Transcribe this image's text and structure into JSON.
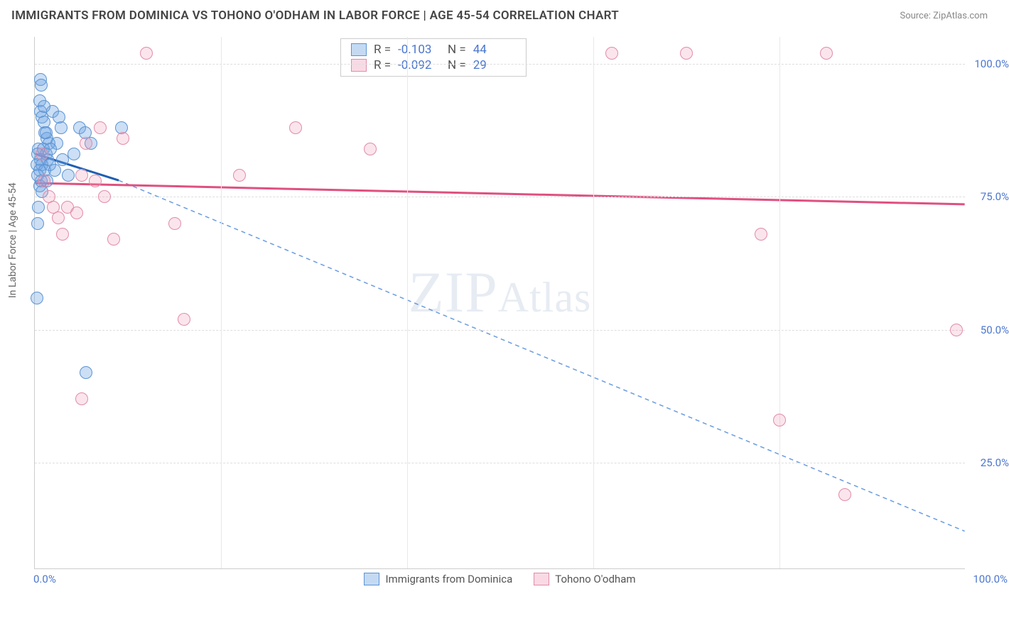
{
  "title": "IMMIGRANTS FROM DOMINICA VS TOHONO O'ODHAM IN LABOR FORCE | AGE 45-54 CORRELATION CHART",
  "source": "Source: ZipAtlas.com",
  "watermark_main": "ZIP",
  "watermark_sub": "Atlas",
  "chart": {
    "type": "scatter",
    "ylabel": "In Labor Force | Age 45-54",
    "ylim": [
      5,
      105
    ],
    "xlim": [
      0,
      100
    ],
    "y_ticks": [
      25,
      50,
      75,
      100
    ],
    "y_tick_labels": [
      "25.0%",
      "50.0%",
      "75.0%",
      "100.0%"
    ],
    "x_tick_left": "0.0%",
    "x_tick_right": "100.0%",
    "x_grid": [
      20,
      40,
      60,
      80
    ],
    "background_color": "#ffffff",
    "grid_color": "#dddddd",
    "point_radius": 9,
    "series": [
      {
        "name": "Immigrants from Dominica",
        "color_key": "blue",
        "fill": "rgba(108,163,226,0.35)",
        "stroke": "#5b94d4",
        "R": "-0.103",
        "N": "44",
        "trend_line": {
          "x1": 0,
          "y1": 83,
          "x2": 9,
          "y2": 78,
          "stroke": "#1e5fb3",
          "width": 3,
          "dash": "none"
        },
        "trend_dash": {
          "x1": 9,
          "y1": 78,
          "x2": 100,
          "y2": 12,
          "stroke": "#6a9be0",
          "width": 1.5,
          "dash": "6,5"
        },
        "points": [
          {
            "x": 0.3,
            "y": 70
          },
          {
            "x": 0.4,
            "y": 73
          },
          {
            "x": 0.6,
            "y": 97
          },
          {
            "x": 0.7,
            "y": 96
          },
          {
            "x": 0.5,
            "y": 93
          },
          {
            "x": 0.6,
            "y": 91
          },
          {
            "x": 0.8,
            "y": 90
          },
          {
            "x": 1.0,
            "y": 89
          },
          {
            "x": 1.1,
            "y": 87
          },
          {
            "x": 1.3,
            "y": 86
          },
          {
            "x": 1.5,
            "y": 85
          },
          {
            "x": 0.4,
            "y": 84
          },
          {
            "x": 0.9,
            "y": 84
          },
          {
            "x": 1.2,
            "y": 83
          },
          {
            "x": 0.3,
            "y": 83
          },
          {
            "x": 0.6,
            "y": 82
          },
          {
            "x": 1.4,
            "y": 82
          },
          {
            "x": 0.2,
            "y": 81
          },
          {
            "x": 0.8,
            "y": 81
          },
          {
            "x": 1.6,
            "y": 81
          },
          {
            "x": 0.5,
            "y": 80
          },
          {
            "x": 1.1,
            "y": 80
          },
          {
            "x": 0.3,
            "y": 79
          },
          {
            "x": 0.7,
            "y": 78
          },
          {
            "x": 1.3,
            "y": 78
          },
          {
            "x": 1.9,
            "y": 91
          },
          {
            "x": 2.4,
            "y": 85
          },
          {
            "x": 3.0,
            "y": 82
          },
          {
            "x": 3.6,
            "y": 79
          },
          {
            "x": 4.2,
            "y": 83
          },
          {
            "x": 4.8,
            "y": 88
          },
          {
            "x": 5.4,
            "y": 87
          },
          {
            "x": 6.0,
            "y": 85
          },
          {
            "x": 9.3,
            "y": 88
          },
          {
            "x": 2.8,
            "y": 88
          },
          {
            "x": 0.2,
            "y": 56
          },
          {
            "x": 5.5,
            "y": 42
          },
          {
            "x": 0.5,
            "y": 77
          },
          {
            "x": 0.8,
            "y": 76
          },
          {
            "x": 1.2,
            "y": 87
          },
          {
            "x": 1.7,
            "y": 84
          },
          {
            "x": 2.1,
            "y": 80
          },
          {
            "x": 2.6,
            "y": 90
          },
          {
            "x": 1.0,
            "y": 92
          }
        ]
      },
      {
        "name": "Tohono O'odham",
        "color_key": "pink",
        "fill": "rgba(238,150,178,0.25)",
        "stroke": "#e28ba7",
        "R": "-0.092",
        "N": "29",
        "trend_line": {
          "x1": 0,
          "y1": 77.5,
          "x2": 100,
          "y2": 73.5,
          "stroke": "#e0507f",
          "width": 3,
          "dash": "none"
        },
        "points": [
          {
            "x": 1.0,
            "y": 78
          },
          {
            "x": 1.5,
            "y": 75
          },
          {
            "x": 2.0,
            "y": 73
          },
          {
            "x": 2.5,
            "y": 71
          },
          {
            "x": 3.5,
            "y": 73
          },
          {
            "x": 4.5,
            "y": 72
          },
          {
            "x": 5.5,
            "y": 85
          },
          {
            "x": 6.5,
            "y": 78
          },
          {
            "x": 7.5,
            "y": 75
          },
          {
            "x": 8.5,
            "y": 67
          },
          {
            "x": 9.5,
            "y": 86
          },
          {
            "x": 12,
            "y": 102
          },
          {
            "x": 15,
            "y": 70
          },
          {
            "x": 16,
            "y": 52
          },
          {
            "x": 22,
            "y": 79
          },
          {
            "x": 28,
            "y": 88
          },
          {
            "x": 36,
            "y": 84
          },
          {
            "x": 62,
            "y": 102
          },
          {
            "x": 70,
            "y": 102
          },
          {
            "x": 85,
            "y": 102
          },
          {
            "x": 78,
            "y": 68
          },
          {
            "x": 80,
            "y": 33
          },
          {
            "x": 87,
            "y": 19
          },
          {
            "x": 99,
            "y": 50
          },
          {
            "x": 0.8,
            "y": 83
          },
          {
            "x": 3.0,
            "y": 68
          },
          {
            "x": 5.0,
            "y": 37
          },
          {
            "x": 5.0,
            "y": 79
          },
          {
            "x": 7.0,
            "y": 88
          }
        ]
      }
    ],
    "legend_labels": [
      "Immigrants from Dominica",
      "Tohono O'odham"
    ],
    "stat_labels": {
      "R": "R =",
      "N": "N ="
    }
  }
}
